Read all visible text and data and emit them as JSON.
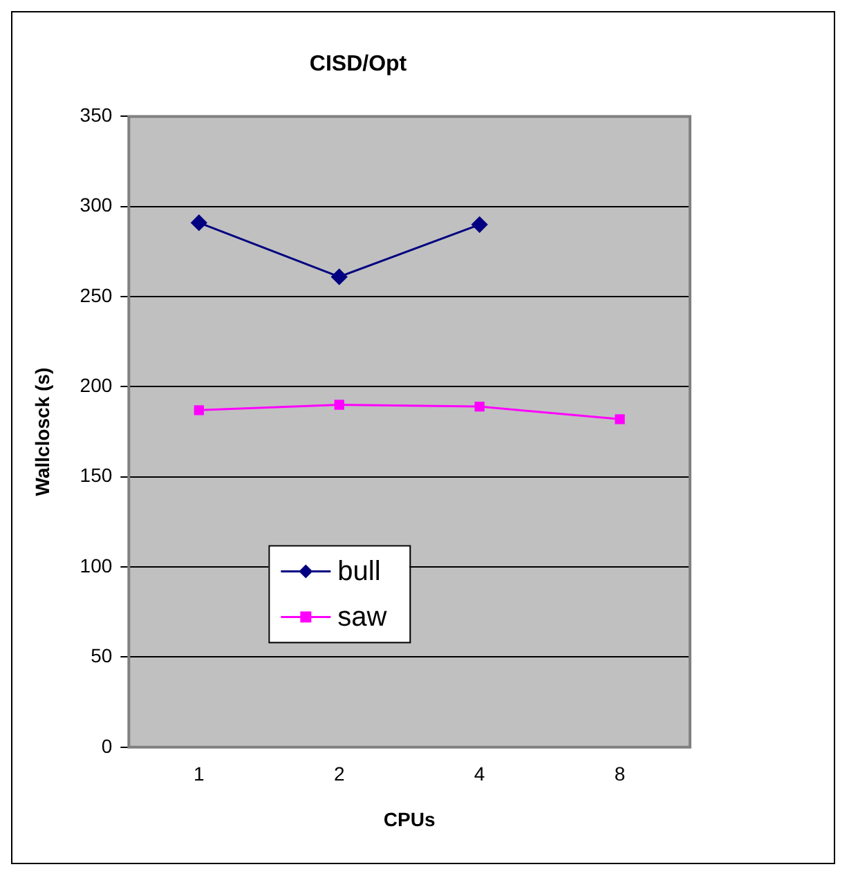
{
  "chart_data": {
    "type": "line",
    "title": "CISD/Opt",
    "xlabel": "CPUs",
    "ylabel": "Wallclosck (s)",
    "categories": [
      "1",
      "2",
      "4",
      "8"
    ],
    "series": [
      {
        "name": "bull",
        "color": "#000080",
        "values": [
          291,
          261,
          290,
          null
        ],
        "marker": "diamond"
      },
      {
        "name": "saw",
        "color": "#ff00ff",
        "values": [
          187,
          190,
          189,
          182
        ],
        "marker": "square"
      }
    ],
    "ylim": [
      0,
      350
    ],
    "yticks": [
      0,
      50,
      100,
      150,
      200,
      250,
      300,
      350
    ],
    "grid": "y",
    "legend": "bottom",
    "line_style": "solid"
  }
}
